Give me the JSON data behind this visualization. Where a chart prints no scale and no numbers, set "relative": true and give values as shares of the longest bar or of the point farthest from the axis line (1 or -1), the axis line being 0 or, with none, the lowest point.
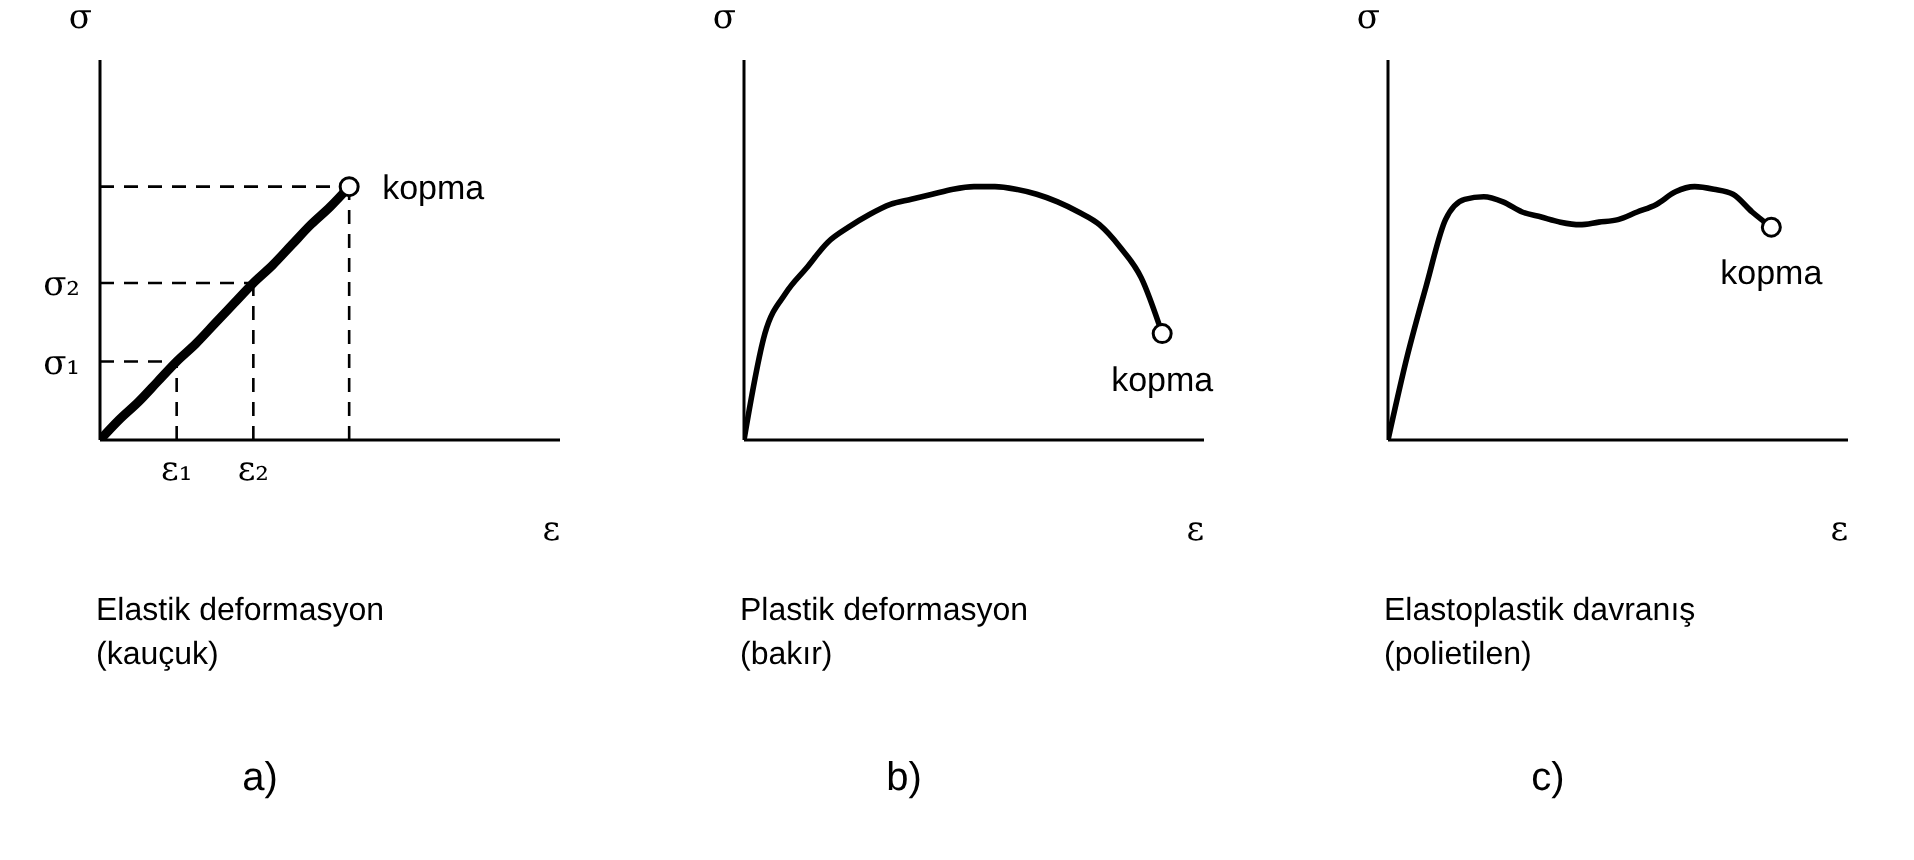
{
  "chart_data": [
    {
      "type": "line",
      "relative": true,
      "xlabel": "ε",
      "ylabel": "σ",
      "title": "Elastik deformasyon",
      "subtitle": "(kauçuk)",
      "categories": [
        null,
        null,
        null,
        null,
        "ε₁",
        null,
        null,
        null,
        "ε₂",
        null,
        null,
        null,
        null,
        null,
        null,
        null,
        null,
        null,
        null,
        null,
        null,
        null,
        null,
        null,
        null
      ],
      "series": [
        {
          "color": "#000000",
          "values": [
            0,
            0.08,
            0.15,
            0.23,
            0.31,
            0.38,
            0.46,
            0.54,
            0.62,
            0.69,
            0.77,
            0.85,
            0.92,
            1,
            null,
            null,
            null,
            null,
            null,
            null,
            null,
            null,
            null,
            null,
            null
          ]
        }
      ],
      "ref_lines": [
        {
          "axis": "y",
          "value": 0.31,
          "label": "σ₁",
          "line_style": "dashed"
        },
        {
          "axis": "y",
          "value": 0.62,
          "label": "σ₂",
          "line_style": "dashed"
        },
        {
          "axis": "y",
          "value": 1,
          "line_style": "dashed"
        },
        {
          "axis": "x",
          "value": "ε₁",
          "line_style": "dashed"
        },
        {
          "axis": "x",
          "value": "ε₂",
          "line_style": "dashed"
        }
      ],
      "annotations": [
        "kopma",
        "a)"
      ]
    },
    {
      "type": "line",
      "relative": true,
      "xlabel": "ε",
      "ylabel": "σ",
      "title": "Plastik deformasyon",
      "subtitle": "(bakır)",
      "categories": [
        null,
        null,
        null,
        null,
        null,
        null,
        null,
        null,
        null,
        null,
        null,
        null,
        null,
        null,
        null,
        null,
        null,
        null,
        null,
        null,
        null,
        null,
        null
      ],
      "series": [
        {
          "color": "#000000",
          "values": [
            0,
            0.42,
            0.58,
            0.68,
            0.78,
            0.84,
            0.89,
            0.93,
            0.95,
            0.97,
            0.99,
            1,
            1,
            0.99,
            0.97,
            0.94,
            0.9,
            0.85,
            0.76,
            0.64,
            0.42,
            null,
            null
          ]
        }
      ],
      "annotations": [
        "kopma",
        "b)"
      ]
    },
    {
      "type": "line",
      "relative": true,
      "xlabel": "ε",
      "ylabel": "σ",
      "title": "Elastoplastik davranış",
      "subtitle": "(polietilen)",
      "categories": [
        null,
        null,
        null,
        null,
        null,
        null,
        null,
        null,
        null,
        null,
        null,
        null,
        null,
        null,
        null,
        null,
        null,
        null,
        null,
        null,
        null,
        null,
        null,
        null,
        null
      ],
      "series": [
        {
          "color": "#000000",
          "values": [
            0,
            0.33,
            0.61,
            0.87,
            0.95,
            0.96,
            0.94,
            0.9,
            0.88,
            0.86,
            0.85,
            0.86,
            0.87,
            0.9,
            0.93,
            0.98,
            1,
            0.99,
            0.97,
            0.9,
            0.84,
            null,
            null,
            null,
            null
          ]
        }
      ],
      "annotations": [
        "kopma",
        "c)"
      ]
    }
  ]
}
